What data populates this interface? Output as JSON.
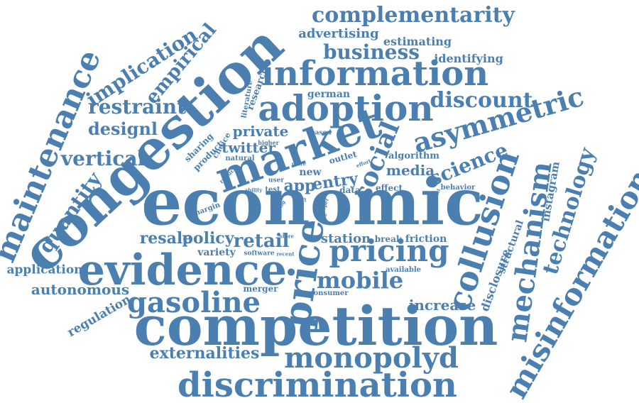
{
  "cloud": {
    "text_color": "#4a7fb0",
    "words": [
      "congestion",
      "economic",
      "competition",
      "market",
      "evidence",
      "information",
      "adoption",
      "discrimination",
      "maintenance",
      "collusion",
      "pricing",
      "asymmetric",
      "price",
      "mechanism",
      "misinformation",
      "monopolyd",
      "gasoline",
      "technology",
      "complementarity",
      "business",
      "restraint",
      "vertical",
      "designl",
      "implication",
      "empirical",
      "discount",
      "mobile",
      "social",
      "science",
      "quantity",
      "application",
      "autonomous",
      "regulation",
      "externalities",
      "resale",
      "policy",
      "retail",
      "station",
      "private",
      "twitter",
      "entry",
      "app",
      "media",
      "increase",
      "disclosure",
      "structural",
      "instagram",
      "advertising",
      "estimating",
      "identifying",
      "german",
      "variety",
      "merger",
      "consumer",
      "sharing",
      "product",
      "choice",
      "literature",
      "research",
      "higher",
      "natural",
      "reduce",
      "based",
      "outlet",
      "effort",
      "algorithm",
      "new",
      "user",
      "ability",
      "test",
      "data",
      "effect",
      "content",
      "behavior",
      "margin",
      "wing",
      "left",
      "paper",
      "time",
      "store",
      "break",
      "friction",
      "software",
      "recent",
      "available",
      "more"
    ]
  }
}
